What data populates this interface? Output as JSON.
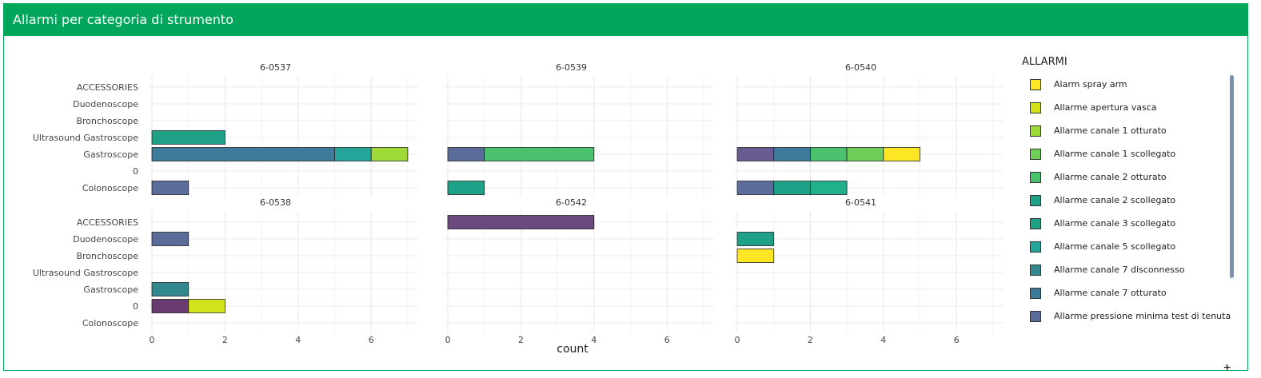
{
  "header": {
    "title": "Allarmi per categoria di strumento"
  },
  "legend": {
    "title": "ALLARMI",
    "items": [
      {
        "label": "Alarm spray arm",
        "color": "#fde725"
      },
      {
        "label": "Allarme apertura vasca",
        "color": "#d2e21b"
      },
      {
        "label": "Allarme canale 1 otturato",
        "color": "#a0da39"
      },
      {
        "label": "Allarme canale 1 scollegato",
        "color": "#6ece58"
      },
      {
        "label": "Allarme canale 2 otturato",
        "color": "#4ac16d"
      },
      {
        "label": "Allarme canale 2 scollegato",
        "color": "#1fa187"
      },
      {
        "label": "Allarme canale 3 scollegato",
        "color": "#1fa187"
      },
      {
        "label": "Allarme canale 5 scollegato",
        "color": "#26a69a"
      },
      {
        "label": "Allarme canale 7 disconnesso",
        "color": "#33888f"
      },
      {
        "label": "Allarme canale 7 otturato",
        "color": "#3e7a9a"
      },
      {
        "label": "Allarme pressione minima test di tenuta",
        "color": "#5b6c9b"
      }
    ]
  },
  "chart_data": {
    "type": "bar",
    "orientation": "horizontal",
    "stacked": true,
    "xlabel": "count",
    "xlim": [
      0,
      7.4
    ],
    "xticks": [
      0,
      2,
      4,
      6
    ],
    "grid": true,
    "legend_position": "right",
    "panels": [
      {
        "title": "6-0537",
        "categories": [
          "ACCESSORIES",
          "Duodenoscope",
          "Bronchoscope",
          "Ultrasound Gastroscope",
          "Gastroscope",
          "0",
          "Colonoscope"
        ],
        "bars": [
          {
            "category": "Ultrasound Gastroscope",
            "segments": [
              {
                "value": 2,
                "color": "#1fa187"
              }
            ]
          },
          {
            "category": "Gastroscope",
            "segments": [
              {
                "value": 5,
                "color": "#3e7a9a"
              },
              {
                "value": 1,
                "color": "#26a69a"
              },
              {
                "value": 1,
                "color": "#a0da39"
              }
            ]
          },
          {
            "category": "Colonoscope",
            "segments": [
              {
                "value": 1,
                "color": "#5b6c9b"
              }
            ]
          }
        ]
      },
      {
        "title": "6-0539",
        "categories": [
          "ACCESSORIES",
          "Duodenoscope",
          "Bronchoscope",
          "Ultrasound Gastroscope",
          "Gastroscope",
          "0",
          "Colonoscope"
        ],
        "bars": [
          {
            "category": "Gastroscope",
            "segments": [
              {
                "value": 1,
                "color": "#5b6c9b"
              },
              {
                "value": 3,
                "color": "#4ac16d"
              }
            ]
          },
          {
            "category": "Colonoscope",
            "segments": [
              {
                "value": 1,
                "color": "#1fa187"
              }
            ]
          }
        ]
      },
      {
        "title": "6-0540",
        "categories": [
          "ACCESSORIES",
          "Duodenoscope",
          "Bronchoscope",
          "Ultrasound Gastroscope",
          "Gastroscope",
          "0",
          "Colonoscope"
        ],
        "bars": [
          {
            "category": "Gastroscope",
            "segments": [
              {
                "value": 1,
                "color": "#6a5a92"
              },
              {
                "value": 1,
                "color": "#3e7a9a"
              },
              {
                "value": 1,
                "color": "#4ac16d"
              },
              {
                "value": 1,
                "color": "#6ece58"
              },
              {
                "value": 1,
                "color": "#fde725"
              }
            ]
          },
          {
            "category": "Colonoscope",
            "segments": [
              {
                "value": 1,
                "color": "#5b6c9b"
              },
              {
                "value": 1,
                "color": "#1fa187"
              },
              {
                "value": 1,
                "color": "#22b08a"
              }
            ]
          }
        ]
      },
      {
        "title": "6-0538",
        "categories": [
          "ACCESSORIES",
          "Duodenoscope",
          "Bronchoscope",
          "Ultrasound Gastroscope",
          "Gastroscope",
          "0",
          "Colonoscope"
        ],
        "bars": [
          {
            "category": "Duodenoscope",
            "segments": [
              {
                "value": 1,
                "color": "#5b6c9b"
              }
            ]
          },
          {
            "category": "Gastroscope",
            "segments": [
              {
                "value": 1,
                "color": "#33888f"
              }
            ]
          },
          {
            "category": "0",
            "segments": [
              {
                "value": 1,
                "color": "#6a3a72"
              },
              {
                "value": 1,
                "color": "#d2e21b"
              }
            ]
          }
        ]
      },
      {
        "title": "6-0542",
        "categories": [
          "ACCESSORIES",
          "Duodenoscope",
          "Bronchoscope",
          "Ultrasound Gastroscope",
          "Gastroscope",
          "0",
          "Colonoscope"
        ],
        "bars": [
          {
            "category": "ACCESSORIES",
            "segments": [
              {
                "value": 4,
                "color": "#6a4a7e"
              }
            ]
          }
        ]
      },
      {
        "title": "6-0541",
        "categories": [
          "ACCESSORIES",
          "Duodenoscope",
          "Bronchoscope",
          "Ultrasound Gastroscope",
          "Gastroscope",
          "0",
          "Colonoscope"
        ],
        "bars": [
          {
            "category": "Duodenoscope",
            "segments": [
              {
                "value": 1,
                "color": "#1fa187"
              }
            ]
          },
          {
            "category": "Bronchoscope",
            "segments": [
              {
                "value": 1,
                "color": "#fde725"
              }
            ]
          }
        ]
      }
    ]
  }
}
